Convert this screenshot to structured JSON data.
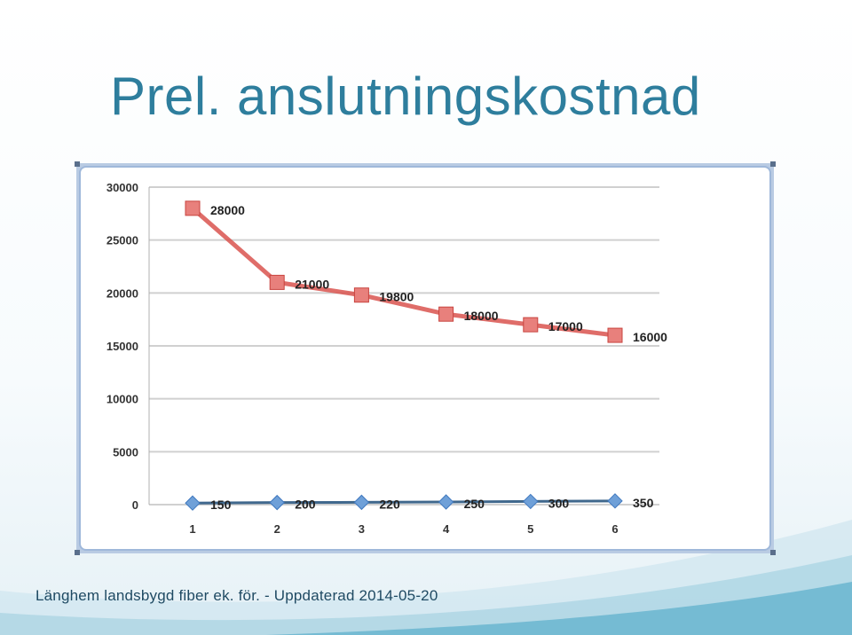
{
  "slide": {
    "title": "Prel. anslutningskostnad",
    "footer": "Länghem landsbygd fiber ek. för. - Uppdaterad 2014-05-20"
  },
  "colors": {
    "title": "#2e7e9d",
    "series_cost": "#d9534f",
    "series_cost_marker": "#e8807c",
    "series_connections": "#1f4e79",
    "series_connections_marker": "#6fa0d8",
    "grid": "#d0d0d0"
  },
  "chart_data": {
    "type": "line",
    "x": [
      "1",
      "2",
      "3",
      "4",
      "5",
      "6"
    ],
    "ylim": [
      0,
      30000
    ],
    "yticks": [
      "0",
      "5000",
      "10000",
      "15000",
      "20000",
      "25000",
      "30000"
    ],
    "grid": true,
    "legend": "none",
    "series": [
      {
        "values": [
          28000,
          21000,
          19800,
          18000,
          17000,
          16000
        ],
        "labels": [
          "28000",
          "21000",
          "19800",
          "18000",
          "17000",
          "16000"
        ],
        "marker": "square"
      },
      {
        "values": [
          150,
          200,
          220,
          250,
          300,
          350
        ],
        "labels": [
          "150",
          "200",
          "220",
          "250",
          "300",
          "350"
        ],
        "marker": "diamond"
      }
    ]
  }
}
